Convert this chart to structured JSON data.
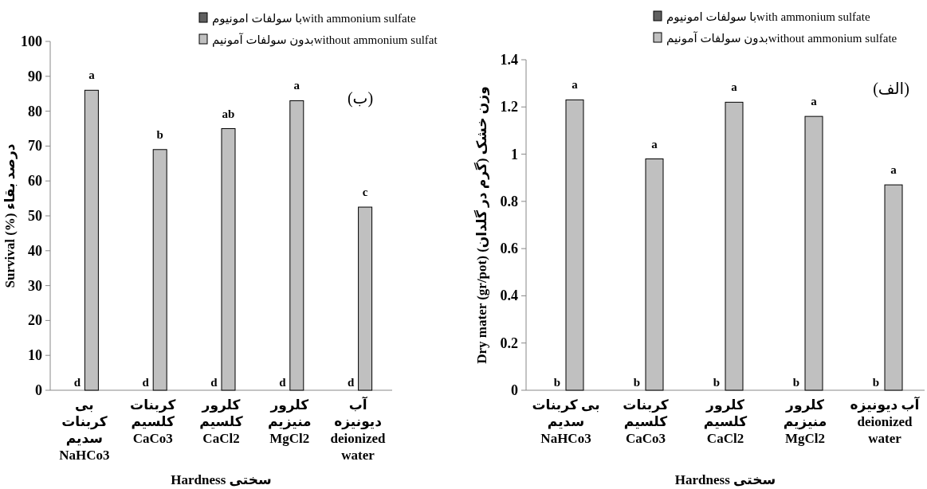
{
  "chart_data": [
    {
      "type": "bar",
      "ylabel": "Survival (%) درصد بقاء",
      "xlabel": "Hardness سختی",
      "categories": [
        "بی کربنات سدیم\nNaHCo3",
        "کربنات کلسیم\nCaCo3",
        "کلرور کلسیم\nCaCl2",
        "کلرور منیزیم\nMgCl2",
        "آب دیونیزه\ndeionized\nwater"
      ],
      "series": [
        {
          "name": "با سولفات امونیومwith ammonium sulfate",
          "color": "#606060",
          "values": [
            0,
            0,
            0,
            0,
            0
          ],
          "value_labels": [
            "d",
            "d",
            "d",
            "d",
            "d"
          ]
        },
        {
          "name": "بدون سولفات آمونیمwithout ammonium sulfat",
          "color": "#c0c0c0",
          "values": [
            86,
            69,
            75,
            83,
            52.5
          ],
          "value_labels": [
            "a",
            "b",
            "ab",
            "a",
            "c"
          ]
        }
      ],
      "ylim": [
        0,
        100
      ],
      "yticks": [
        0,
        10,
        20,
        30,
        40,
        50,
        60,
        70,
        80,
        90,
        100
      ],
      "legend": "top right",
      "annotations": [
        "(ب)"
      ]
    },
    {
      "type": "bar",
      "ylabel": "Dry mater (gr/pot) وزن خشک (گرم در گلدان)",
      "xlabel": "Hardness سختی",
      "categories": [
        "بی کربنات سدیم\nNaHCo3",
        "کربنات کلسیم\nCaCo3",
        "کلرور کلسیم\nCaCl2",
        "کلرور منیزیم\nMgCl2",
        "آب دیونیزه\ndeionized\nwater"
      ],
      "series": [
        {
          "name": "با سولفات امونیومwith ammonium sulfate",
          "color": "#606060",
          "values": [
            0,
            0,
            0,
            0,
            0
          ],
          "value_labels": [
            "b",
            "b",
            "b",
            "b",
            "b"
          ]
        },
        {
          "name": "بدون سولفات آمونیمwithout ammonium sulfate",
          "color": "#c0c0c0",
          "values": [
            1.23,
            0.98,
            1.22,
            1.16,
            0.87
          ],
          "value_labels": [
            "a",
            "a",
            "a",
            "a",
            "a"
          ]
        }
      ],
      "ylim": [
        0,
        1.4
      ],
      "yticks": [
        0,
        0.2,
        0.4,
        0.6,
        0.8,
        1,
        1.2,
        1.4
      ],
      "legend": "top right",
      "annotations": [
        "(الف)"
      ]
    }
  ]
}
